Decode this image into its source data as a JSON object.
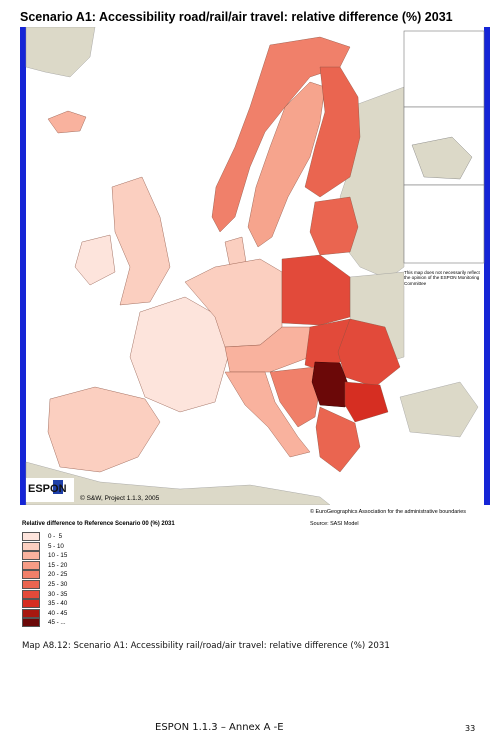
{
  "title": "Scenario A1: Accessibility road/rail/air travel: relative difference (%) 2031",
  "map": {
    "disclaimer": "This map does not necessarily reflect the opinion of the ESPON Monitoring Committee",
    "credit": "© S&W, Project 1.1.3, 2005",
    "source_admin": "© EuroGeographics Association for the administrative boundaries",
    "source_model": "Source: SASI Model",
    "logo_text": "ESPON",
    "colors": {
      "sea": "#ffffff",
      "non_espon_land": "#dcd9c8",
      "frame_side": "#1525d6"
    }
  },
  "legend": {
    "title": "Relative difference to Reference Scenario 00 (%) 2031",
    "classes": [
      {
        "label": "0 -  5",
        "color": "#fde4dc"
      },
      {
        "label": "5 - 10",
        "color": "#fbcfc0"
      },
      {
        "label": "10 - 15",
        "color": "#f9b29e"
      },
      {
        "label": "15 - 20",
        "color": "#f69c86"
      },
      {
        "label": "20 - 25",
        "color": "#f0806a"
      },
      {
        "label": "25 - 30",
        "color": "#ea6550"
      },
      {
        "label": "30 - 35",
        "color": "#e24a3a"
      },
      {
        "label": "35 - 40",
        "color": "#d62e22"
      },
      {
        "label": "40 - 45",
        "color": "#a81810"
      },
      {
        "label": "45 - ...",
        "color": "#6b0808"
      }
    ]
  },
  "caption": "Map A8.12: Scenario A1: Accessibility rail/road/air travel: relative difference (%) 2031",
  "footer": "ESPON 1.1.3 – Annex A -E",
  "page_number": "33"
}
